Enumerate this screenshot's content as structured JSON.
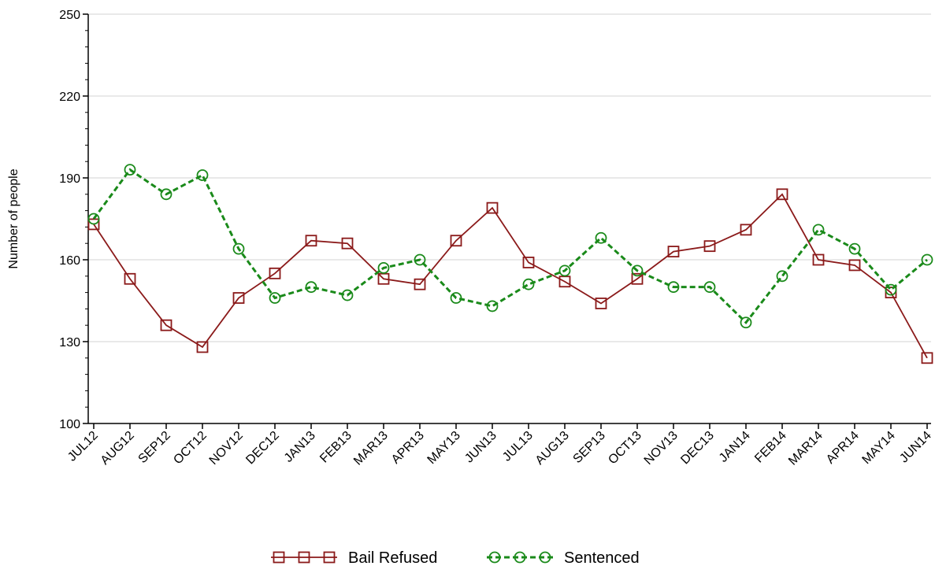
{
  "chart_data": {
    "type": "line",
    "title": "",
    "xlabel": "",
    "ylabel": "Number of people",
    "categories": [
      "JUL12",
      "AUG12",
      "SEP12",
      "OCT12",
      "NOV12",
      "DEC12",
      "JAN13",
      "FEB13",
      "MAR13",
      "APR13",
      "MAY13",
      "JUN13",
      "JUL13",
      "AUG13",
      "SEP13",
      "OCT13",
      "NOV13",
      "DEC13",
      "JAN14",
      "FEB14",
      "MAR14",
      "APR14",
      "MAY14",
      "JUN14"
    ],
    "ylim": [
      100,
      250
    ],
    "yticks": [
      100,
      130,
      160,
      190,
      220,
      250
    ],
    "grid": true,
    "legend_position": "bottom-center",
    "series": [
      {
        "name": "Bail Refused",
        "color": "#8b1a1a",
        "marker": "square",
        "line_style": "solid",
        "values": [
          173,
          153,
          136,
          128,
          146,
          155,
          167,
          166,
          153,
          151,
          167,
          179,
          159,
          152,
          144,
          153,
          163,
          165,
          171,
          184,
          160,
          158,
          148,
          124
        ]
      },
      {
        "name": "Sentenced",
        "color": "#1a8a1a",
        "marker": "circle",
        "line_style": "dashed",
        "values": [
          175,
          193,
          184,
          191,
          164,
          146,
          150,
          147,
          157,
          160,
          146,
          143,
          151,
          156,
          168,
          156,
          150,
          150,
          137,
          154,
          171,
          164,
          149,
          160
        ]
      }
    ]
  }
}
